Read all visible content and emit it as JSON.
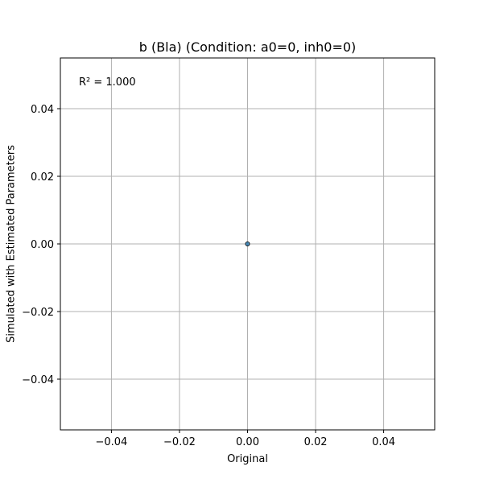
{
  "chart_data": {
    "type": "scatter",
    "title": "b (Bla) (Condition: a0=0, inh0=0)",
    "xlabel": "Original",
    "ylabel": "Simulated with Estimated Parameters",
    "xlim": [
      -0.055,
      0.055
    ],
    "ylim": [
      -0.055,
      0.055
    ],
    "xticks": [
      -0.04,
      -0.02,
      0.0,
      0.02,
      0.04
    ],
    "yticks": [
      -0.04,
      -0.02,
      0.0,
      0.02,
      0.04
    ],
    "xtick_labels": [
      "−0.04",
      "−0.02",
      "0.00",
      "0.02",
      "0.04"
    ],
    "ytick_labels": [
      "−0.04",
      "−0.02",
      "0.00",
      "0.02",
      "0.04"
    ],
    "grid": true,
    "points": [
      {
        "x": 0.0,
        "y": 0.0
      }
    ],
    "annotation": "R² = 1.000",
    "marker_color": "#1f77b4"
  }
}
